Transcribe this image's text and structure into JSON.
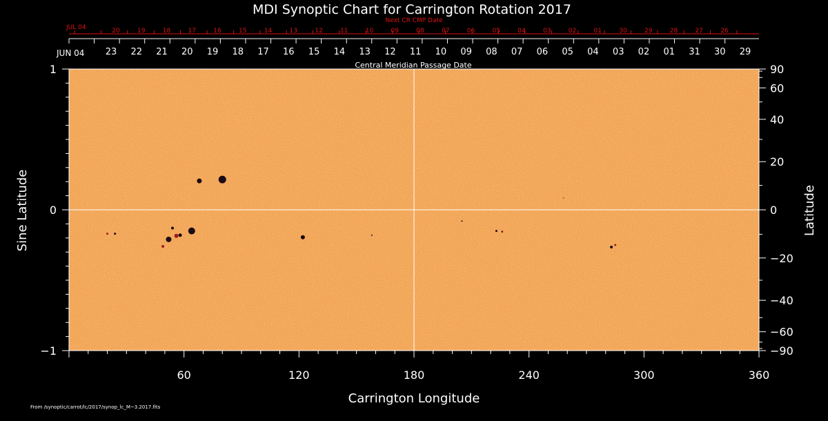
{
  "chart_data": {
    "type": "heatmap",
    "title": "MDI Synoptic Chart for Carrington Rotation 2017",
    "xlabel": "Carrington Longitude",
    "ylabel_left": "Sine Latitude",
    "ylabel_right": "Latitude",
    "xlim": [
      0,
      360
    ],
    "ylim": [
      -1,
      1
    ],
    "x_ticks": [
      60,
      120,
      180,
      240,
      300,
      360
    ],
    "y_left_ticks": [
      {
        "value": 1,
        "label": "1"
      },
      {
        "value": 0,
        "label": "0"
      },
      {
        "value": -1,
        "label": "−1"
      }
    ],
    "y_right_ticks": [
      {
        "deg": 90,
        "label": "90"
      },
      {
        "deg": 60,
        "label": "60"
      },
      {
        "deg": 40,
        "label": "40"
      },
      {
        "deg": 20,
        "label": "20"
      },
      {
        "deg": 0,
        "label": "0"
      },
      {
        "deg": -20,
        "label": "−20"
      },
      {
        "deg": -40,
        "label": "−40"
      },
      {
        "deg": -60,
        "label": "−60"
      },
      {
        "deg": -90,
        "label": "−90"
      }
    ],
    "grid_lines": {
      "longitude": 180,
      "sine_latitude": 0
    },
    "top_axis": {
      "caption": "Central Meridian Passage Date",
      "start_label": "JUN 04",
      "dates": [
        "23",
        "22",
        "21",
        "20",
        "19",
        "18",
        "17",
        "16",
        "15",
        "14",
        "13",
        "12",
        "11",
        "10",
        "09",
        "08",
        "07",
        "06",
        "05",
        "04",
        "03",
        "02",
        "01",
        "31",
        "30",
        "29"
      ]
    },
    "next_axis": {
      "caption": "Next CR CMP Date",
      "start_label": "JUL 04",
      "dates": [
        "20",
        "19",
        "18",
        "17",
        "16",
        "15",
        "14",
        "13",
        "12",
        "11",
        "10",
        "09",
        "08",
        "07",
        "06",
        "05",
        "04",
        "03",
        "02",
        "01",
        "30",
        "29",
        "28",
        "27",
        "26"
      ]
    },
    "colors": {
      "background": "#000000",
      "text": "#ffffff",
      "next_axis": "#dd1111",
      "field": "#f2a24a",
      "negative_spot": "#1a0a12",
      "positive_spot": "#9a1e1e"
    },
    "sunspots": [
      {
        "lon": 80,
        "sinlat": 0.215,
        "r": 5.5,
        "polarity": "neg"
      },
      {
        "lon": 68,
        "sinlat": 0.205,
        "r": 3.5,
        "polarity": "neg"
      },
      {
        "lon": 64,
        "sinlat": -0.15,
        "r": 5,
        "polarity": "neg"
      },
      {
        "lon": 52,
        "sinlat": -0.21,
        "r": 4,
        "polarity": "neg"
      },
      {
        "lon": 56,
        "sinlat": -0.185,
        "r": 3,
        "polarity": "pos"
      },
      {
        "lon": 58,
        "sinlat": -0.18,
        "r": 2.5,
        "polarity": "neg"
      },
      {
        "lon": 54,
        "sinlat": -0.13,
        "r": 2,
        "polarity": "neg"
      },
      {
        "lon": 49,
        "sinlat": -0.26,
        "r": 2,
        "polarity": "pos"
      },
      {
        "lon": 20,
        "sinlat": -0.17,
        "r": 1.5,
        "polarity": "pos"
      },
      {
        "lon": 24,
        "sinlat": -0.17,
        "r": 1.5,
        "polarity": "neg"
      },
      {
        "lon": 122,
        "sinlat": -0.195,
        "r": 3,
        "polarity": "neg"
      },
      {
        "lon": 158,
        "sinlat": -0.18,
        "r": 1,
        "polarity": "neg"
      },
      {
        "lon": 223,
        "sinlat": -0.15,
        "r": 1.5,
        "polarity": "neg"
      },
      {
        "lon": 226,
        "sinlat": -0.155,
        "r": 1.5,
        "polarity": "pos"
      },
      {
        "lon": 205,
        "sinlat": -0.08,
        "r": 1,
        "polarity": "neg"
      },
      {
        "lon": 283,
        "sinlat": -0.265,
        "r": 2,
        "polarity": "neg"
      },
      {
        "lon": 285,
        "sinlat": -0.25,
        "r": 1.5,
        "polarity": "pos"
      },
      {
        "lon": 258,
        "sinlat": 0.085,
        "r": 0.8,
        "polarity": "pos"
      }
    ]
  },
  "footer": {
    "source": "From /synoptic/carrot/lc/2017/synop_lc_M~3.2017.fits"
  }
}
